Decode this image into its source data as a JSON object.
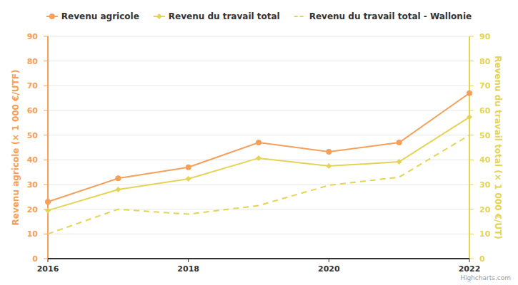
{
  "chart_data": {
    "type": "line",
    "x": [
      2016,
      2017,
      2018,
      2019,
      2020,
      2021,
      2022
    ],
    "xlim": [
      2016,
      2022
    ],
    "xticks": [
      2016,
      2018,
      2020,
      2022
    ],
    "y_label": "Revenu agricole (× 1 000 €/UTF)",
    "ylim": [
      0,
      90
    ],
    "yticks": [
      0,
      10,
      20,
      30,
      40,
      50,
      60,
      70,
      80,
      90
    ],
    "y2_label": "Revenu du travail total (× 1 000 €/UT)",
    "y2lim": [
      0,
      90
    ],
    "y2ticks": [
      0,
      10,
      20,
      30,
      40,
      50,
      60,
      70,
      80,
      90
    ],
    "grid": true,
    "legend": "top",
    "annotations": [
      "Highcharts.com"
    ],
    "series": [
      {
        "name": "Revenu agricole",
        "color": "#f5a05a",
        "marker": "circle",
        "line_style": "solid",
        "values": [
          23,
          32.5,
          37,
          47,
          43.3,
          47,
          67
        ]
      },
      {
        "name": "Revenu du travail total",
        "color": "#e4d354",
        "marker": "diamond",
        "line_style": "solid",
        "axis": "y2",
        "values": [
          19.5,
          28,
          32.3,
          40.7,
          37.5,
          39.2,
          57.3
        ]
      },
      {
        "name": "Revenu du travail total - Wallonie",
        "color": "#e4d354",
        "marker": "none",
        "line_style": "dashed",
        "axis": "y2",
        "values": [
          10,
          20,
          18,
          21.5,
          29.7,
          33,
          50
        ]
      }
    ]
  }
}
